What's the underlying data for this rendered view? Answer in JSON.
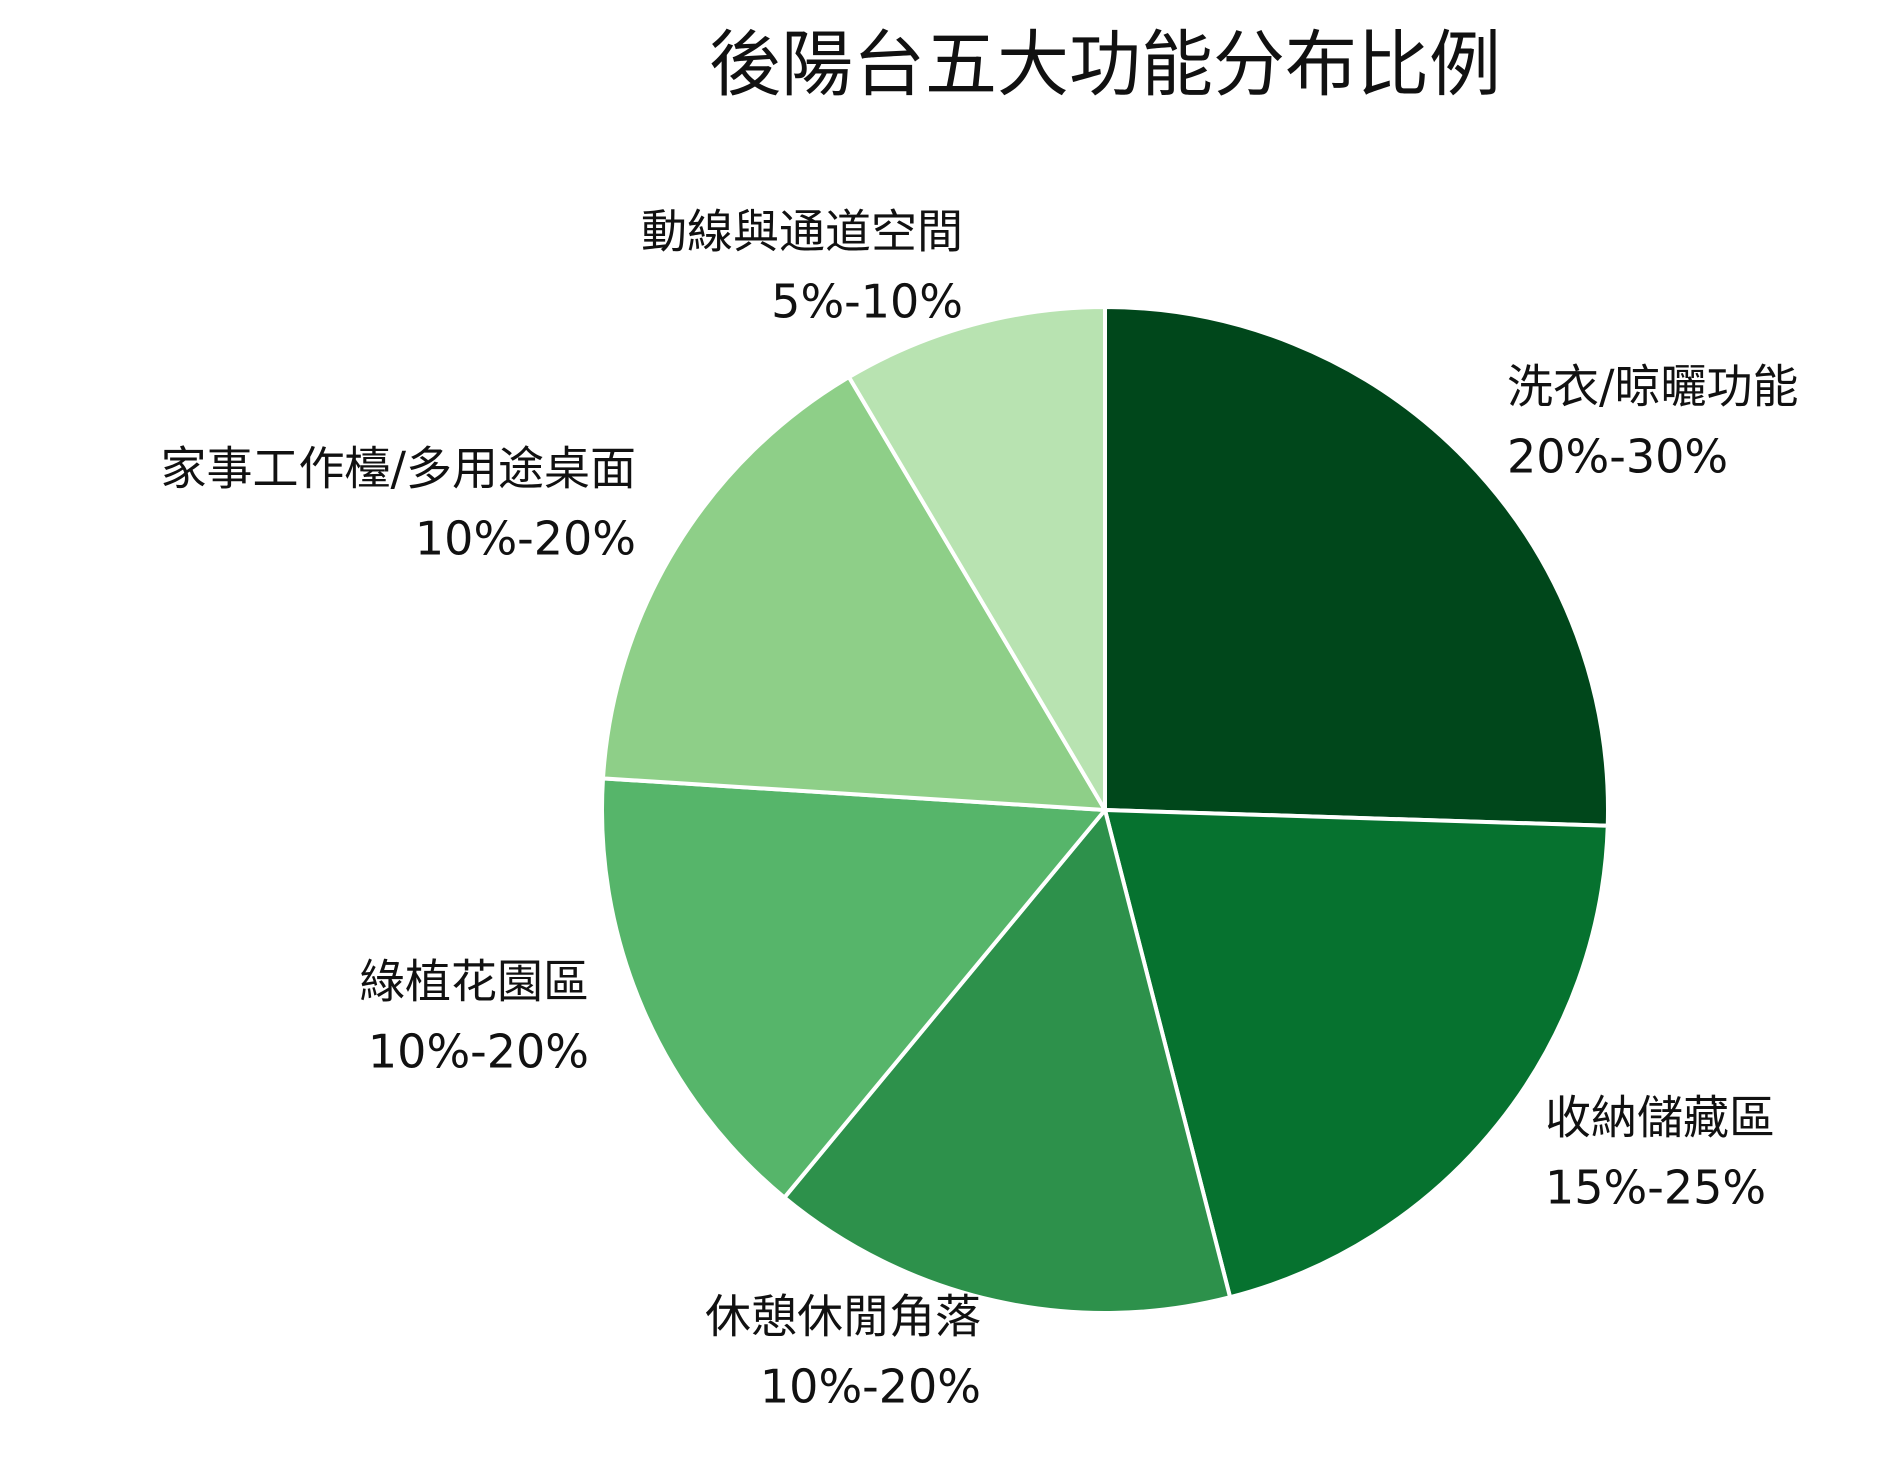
{
  "chart_data": {
    "type": "pie",
    "title": "後陽台五大功能分布比例",
    "categories": [
      "洗衣/晾曬功能",
      "收納儲藏區",
      "休憩休閒角落",
      "綠植花園區",
      "家事工作檯/多用途桌面",
      "動線與通道空間"
    ],
    "range_labels": [
      "20%-30%",
      "15%-25%",
      "10%-20%",
      "10%-20%",
      "10%-20%",
      "5%-10%"
    ],
    "values": [
      25.5,
      20.5,
      15,
      15,
      15.5,
      8.5
    ],
    "colors": [
      "#00471b",
      "#06722f",
      "#2d914b",
      "#56b56a",
      "#8ecf88",
      "#b8e3b1"
    ],
    "start_angle": 90,
    "direction": "clockwise"
  }
}
